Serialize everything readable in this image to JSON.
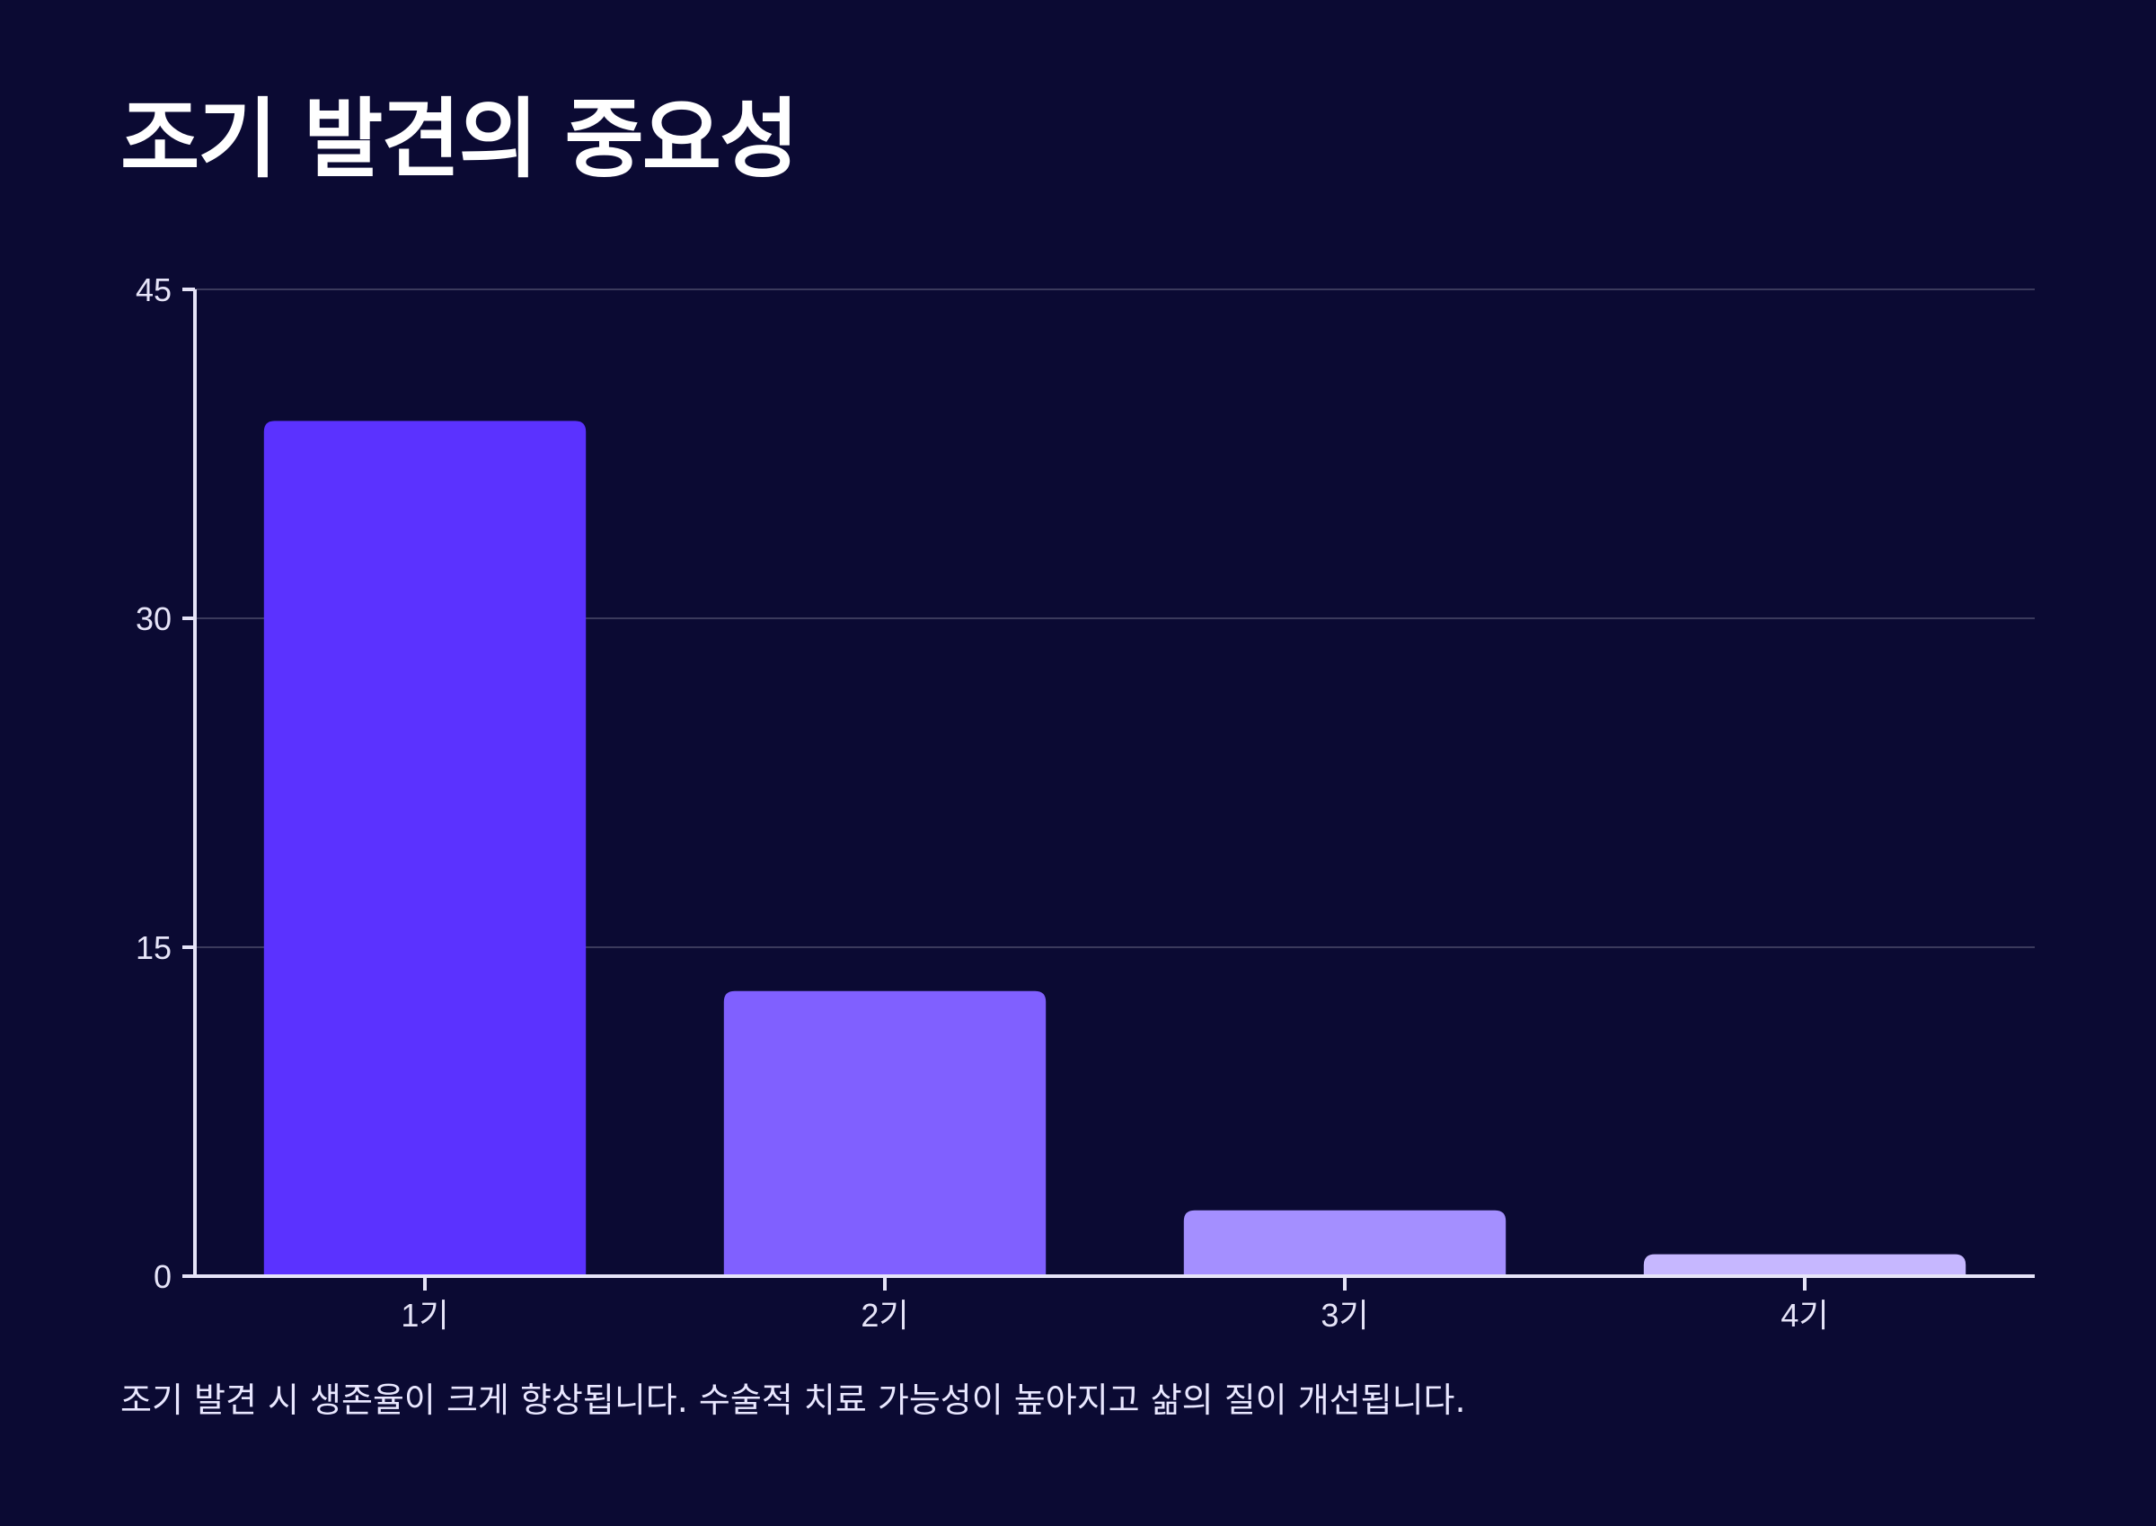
{
  "chart_data": {
    "type": "bar",
    "title": "조기 발견의 중요성",
    "categories": [
      "1기",
      "2기",
      "3기",
      "4기"
    ],
    "values": [
      39,
      13,
      3,
      1
    ],
    "ylim": [
      0,
      45
    ],
    "yticks": [
      0,
      15,
      30,
      45
    ],
    "grid": true,
    "colors": [
      "#5b32ff",
      "#8060ff",
      "#a48fff",
      "#c6b7ff"
    ],
    "caption": "조기 발견 시 생존율이 크게 향상됩니다. 수술적 치료 가능성이 높아지고 삶의 질이 개선됩니다."
  },
  "theme": {
    "background": "#0b0a33",
    "axis_color": "#e6e4f8",
    "grid_color": "#3b3a5c"
  }
}
